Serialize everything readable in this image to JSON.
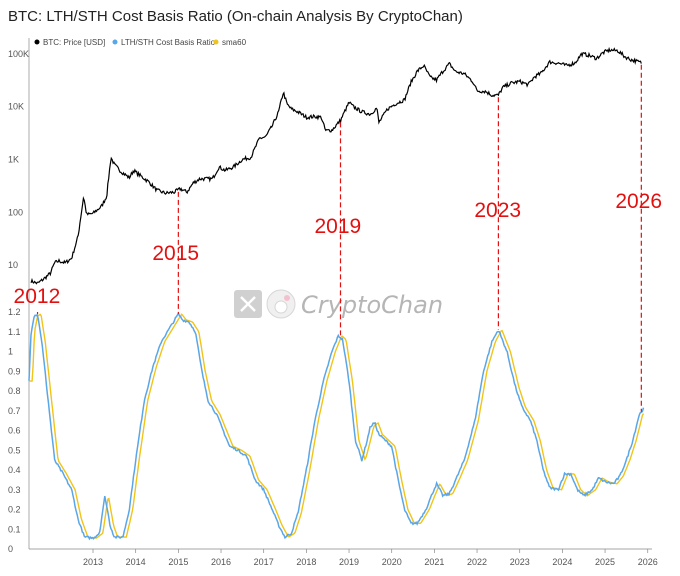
{
  "title": "BTC: LTH/STH Cost Basis Ratio (On-chain Analysis By CryptoChan)",
  "watermark": {
    "text": "CryptoChan",
    "icon": "x-logo-icon"
  },
  "colors": {
    "price": "#000000",
    "ratio": "#5aa6e6",
    "sma": "#f0c419",
    "annotation": "#e31010",
    "axis": "#888888"
  },
  "chart_data": [
    {
      "type": "line",
      "title": "",
      "scale": "log",
      "ylim": [
        2,
        200000
      ],
      "yticks": [
        {
          "value": 10,
          "label": "10"
        },
        {
          "value": 100,
          "label": "100"
        },
        {
          "value": 1000,
          "label": "1K"
        },
        {
          "value": 10000,
          "label": "10K"
        },
        {
          "value": 100000,
          "label": "100K"
        }
      ],
      "legend": [
        {
          "name": "BTC: Price [USD]",
          "color": "#000000"
        },
        {
          "name": "LTH/STH Cost Basis Ratio",
          "color": "#5aa6e6"
        },
        {
          "name": "sma60",
          "color": "#f0c419"
        }
      ],
      "legend_position": "top-left",
      "series": [
        {
          "name": "BTC: Price [USD]",
          "points": [
            [
              2012.05,
              5
            ],
            [
              2012.2,
              4.5
            ],
            [
              2012.35,
              5.5
            ],
            [
              2012.5,
              7
            ],
            [
              2012.6,
              11
            ],
            [
              2012.7,
              12
            ],
            [
              2012.85,
              11
            ],
            [
              2013.0,
              13.5
            ],
            [
              2013.15,
              35
            ],
            [
              2013.28,
              200
            ],
            [
              2013.35,
              90
            ],
            [
              2013.5,
              95
            ],
            [
              2013.7,
              130
            ],
            [
              2013.82,
              200
            ],
            [
              2013.92,
              1100
            ],
            [
              2014.0,
              800
            ],
            [
              2014.15,
              600
            ],
            [
              2014.35,
              450
            ],
            [
              2014.45,
              620
            ],
            [
              2014.6,
              500
            ],
            [
              2014.8,
              380
            ],
            [
              2015.0,
              260
            ],
            [
              2015.2,
              230
            ],
            [
              2015.4,
              240
            ],
            [
              2015.55,
              280
            ],
            [
              2015.7,
              240
            ],
            [
              2015.85,
              360
            ],
            [
              2016.0,
              430
            ],
            [
              2016.3,
              430
            ],
            [
              2016.45,
              720
            ],
            [
              2016.6,
              620
            ],
            [
              2016.8,
              730
            ],
            [
              2017.0,
              1000
            ],
            [
              2017.2,
              1100
            ],
            [
              2017.4,
              2500
            ],
            [
              2017.55,
              2700
            ],
            [
              2017.7,
              4300
            ],
            [
              2017.85,
              8000
            ],
            [
              2017.96,
              19000
            ],
            [
              2018.05,
              11000
            ],
            [
              2018.15,
              9000
            ],
            [
              2018.3,
              8000
            ],
            [
              2018.5,
              6300
            ],
            [
              2018.7,
              6500
            ],
            [
              2018.85,
              6300
            ],
            [
              2018.95,
              3500
            ],
            [
              2019.1,
              3600
            ],
            [
              2019.3,
              5500
            ],
            [
              2019.5,
              12000
            ],
            [
              2019.6,
              10000
            ],
            [
              2019.8,
              8000
            ],
            [
              2020.0,
              7200
            ],
            [
              2020.15,
              9500
            ],
            [
              2020.2,
              5000
            ],
            [
              2020.4,
              9000
            ],
            [
              2020.6,
              11500
            ],
            [
              2020.8,
              13500
            ],
            [
              2020.95,
              29000
            ],
            [
              2021.1,
              47000
            ],
            [
              2021.25,
              60000
            ],
            [
              2021.4,
              36000
            ],
            [
              2021.55,
              32000
            ],
            [
              2021.7,
              47000
            ],
            [
              2021.85,
              65000
            ],
            [
              2022.0,
              46000
            ],
            [
              2022.2,
              42000
            ],
            [
              2022.4,
              30000
            ],
            [
              2022.5,
              20000
            ],
            [
              2022.7,
              19500
            ],
            [
              2022.85,
              16500
            ],
            [
              2023.0,
              16500
            ],
            [
              2023.1,
              23000
            ],
            [
              2023.3,
              28000
            ],
            [
              2023.5,
              30000
            ],
            [
              2023.7,
              26000
            ],
            [
              2023.85,
              37000
            ],
            [
              2024.0,
              43000
            ],
            [
              2024.2,
              70000
            ],
            [
              2024.4,
              67000
            ],
            [
              2024.6,
              60000
            ],
            [
              2024.8,
              68000
            ],
            [
              2024.95,
              100000
            ],
            [
              2025.1,
              95000
            ],
            [
              2025.3,
              82000
            ],
            [
              2025.45,
              105000
            ],
            [
              2025.6,
              118000
            ],
            [
              2025.8,
              115000
            ],
            [
              2025.95,
              90000
            ],
            [
              2026.1,
              78000
            ],
            [
              2026.25,
              72000
            ],
            [
              2026.35,
              68000
            ]
          ]
        }
      ],
      "annotations": [
        {
          "label": "2012",
          "x": 2012.2
        },
        {
          "label": "2015",
          "x": 2015.5
        },
        {
          "label": "2019",
          "x": 2019.3
        },
        {
          "label": "2023",
          "x": 2023.0
        },
        {
          "label": "2026",
          "x": 2026.35
        }
      ]
    },
    {
      "type": "line",
      "title": "",
      "ylim": [
        0,
        1.2
      ],
      "yticks": [
        {
          "value": 0,
          "label": "0"
        },
        {
          "value": 0.1,
          "label": "0.1"
        },
        {
          "value": 0.2,
          "label": "0.2"
        },
        {
          "value": 0.3,
          "label": "0.3"
        },
        {
          "value": 0.4,
          "label": "0.4"
        },
        {
          "value": 0.5,
          "label": "0.5"
        },
        {
          "value": 0.6,
          "label": "0.6"
        },
        {
          "value": 0.7,
          "label": "0.7"
        },
        {
          "value": 0.8,
          "label": "0.8"
        },
        {
          "value": 0.9,
          "label": "0.9"
        },
        {
          "value": 1,
          "label": "1"
        },
        {
          "value": 1.1,
          "label": "1.1"
        },
        {
          "value": 1.2,
          "label": "1.2"
        }
      ],
      "xlim": [
        2012.0,
        2026.6
      ],
      "xticks": [
        "2013",
        "2014",
        "2015",
        "2016",
        "2017",
        "2018",
        "2019",
        "2020",
        "2021",
        "2022",
        "2023",
        "2024",
        "2025",
        "2026"
      ],
      "series": [
        {
          "name": "LTH/STH Cost Basis Ratio",
          "points": [
            [
              2012.0,
              0.85
            ],
            [
              2012.05,
              1.1
            ],
            [
              2012.12,
              1.18
            ],
            [
              2012.2,
              1.19
            ],
            [
              2012.3,
              1.05
            ],
            [
              2012.45,
              0.75
            ],
            [
              2012.6,
              0.45
            ],
            [
              2012.8,
              0.38
            ],
            [
              2013.0,
              0.3
            ],
            [
              2013.15,
              0.15
            ],
            [
              2013.3,
              0.06
            ],
            [
              2013.5,
              0.055
            ],
            [
              2013.65,
              0.08
            ],
            [
              2013.78,
              0.27
            ],
            [
              2013.9,
              0.12
            ],
            [
              2014.0,
              0.06
            ],
            [
              2014.2,
              0.06
            ],
            [
              2014.35,
              0.2
            ],
            [
              2014.5,
              0.45
            ],
            [
              2014.7,
              0.75
            ],
            [
              2014.9,
              0.92
            ],
            [
              2015.1,
              1.05
            ],
            [
              2015.3,
              1.12
            ],
            [
              2015.5,
              1.19
            ],
            [
              2015.6,
              1.16
            ],
            [
              2015.75,
              1.15
            ],
            [
              2015.9,
              1.1
            ],
            [
              2016.05,
              0.9
            ],
            [
              2016.2,
              0.75
            ],
            [
              2016.4,
              0.68
            ],
            [
              2016.55,
              0.6
            ],
            [
              2016.7,
              0.52
            ],
            [
              2016.9,
              0.5
            ],
            [
              2017.1,
              0.47
            ],
            [
              2017.3,
              0.35
            ],
            [
              2017.5,
              0.3
            ],
            [
              2017.7,
              0.2
            ],
            [
              2017.85,
              0.12
            ],
            [
              2018.0,
              0.06
            ],
            [
              2018.15,
              0.08
            ],
            [
              2018.3,
              0.18
            ],
            [
              2018.5,
              0.4
            ],
            [
              2018.7,
              0.65
            ],
            [
              2018.9,
              0.85
            ],
            [
              2019.1,
              1.0
            ],
            [
              2019.25,
              1.08
            ],
            [
              2019.35,
              1.06
            ],
            [
              2019.5,
              0.85
            ],
            [
              2019.65,
              0.55
            ],
            [
              2019.8,
              0.45
            ],
            [
              2019.9,
              0.53
            ],
            [
              2020.0,
              0.62
            ],
            [
              2020.1,
              0.64
            ],
            [
              2020.2,
              0.58
            ],
            [
              2020.35,
              0.55
            ],
            [
              2020.5,
              0.52
            ],
            [
              2020.65,
              0.35
            ],
            [
              2020.8,
              0.2
            ],
            [
              2020.95,
              0.13
            ],
            [
              2021.1,
              0.13
            ],
            [
              2021.3,
              0.2
            ],
            [
              2021.45,
              0.28
            ],
            [
              2021.55,
              0.33
            ],
            [
              2021.7,
              0.27
            ],
            [
              2021.85,
              0.28
            ],
            [
              2022.0,
              0.35
            ],
            [
              2022.2,
              0.45
            ],
            [
              2022.45,
              0.65
            ],
            [
              2022.65,
              0.9
            ],
            [
              2022.85,
              1.05
            ],
            [
              2023.0,
              1.11
            ],
            [
              2023.2,
              1.0
            ],
            [
              2023.4,
              0.82
            ],
            [
              2023.55,
              0.72
            ],
            [
              2023.75,
              0.65
            ],
            [
              2023.9,
              0.55
            ],
            [
              2024.05,
              0.4
            ],
            [
              2024.2,
              0.31
            ],
            [
              2024.4,
              0.3
            ],
            [
              2024.55,
              0.38
            ],
            [
              2024.7,
              0.38
            ],
            [
              2024.85,
              0.3
            ],
            [
              2025.0,
              0.27
            ],
            [
              2025.2,
              0.3
            ],
            [
              2025.35,
              0.36
            ],
            [
              2025.5,
              0.34
            ],
            [
              2025.7,
              0.33
            ],
            [
              2025.85,
              0.37
            ],
            [
              2026.0,
              0.45
            ],
            [
              2026.15,
              0.55
            ],
            [
              2026.3,
              0.68
            ],
            [
              2026.4,
              0.71
            ]
          ]
        },
        {
          "name": "sma60",
          "lag": 0.08
        }
      ]
    }
  ]
}
